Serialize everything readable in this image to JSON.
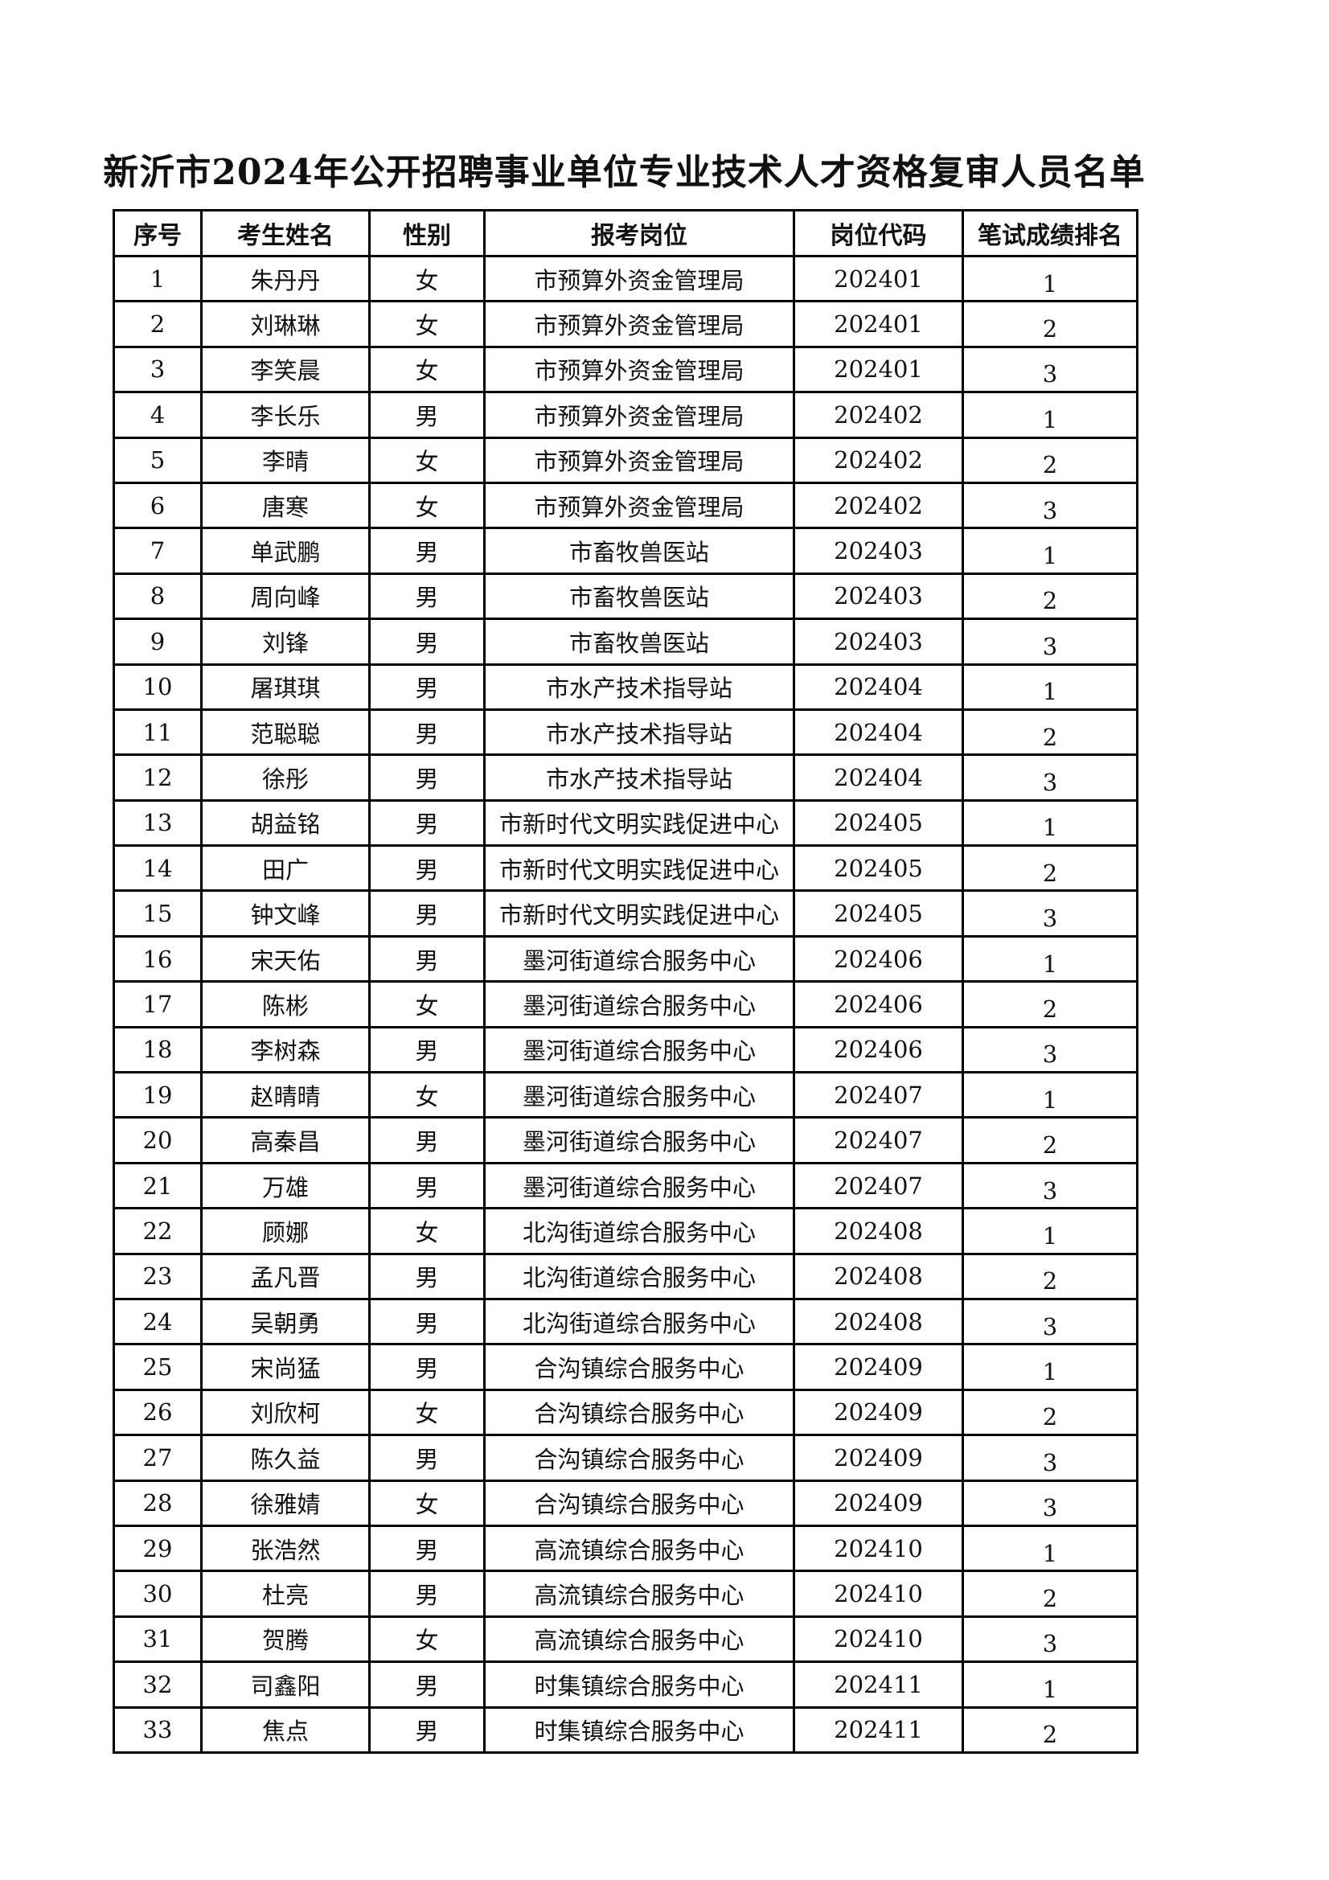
{
  "title": "新沂市2024年公开招聘事业单位专业技术人才资格复审人员名单",
  "columns": [
    "序号",
    "考生姓名",
    "性别",
    "报考岗位",
    "岗位代码",
    "笔试成绩排名"
  ],
  "rows": [
    [
      "1",
      "朱丹丹",
      "女",
      "市预算外资金管理局",
      "202401",
      "1"
    ],
    [
      "2",
      "刘琳琳",
      "女",
      "市预算外资金管理局",
      "202401",
      "2"
    ],
    [
      "3",
      "李笑晨",
      "女",
      "市预算外资金管理局",
      "202401",
      "3"
    ],
    [
      "4",
      "李长乐",
      "男",
      "市预算外资金管理局",
      "202402",
      "1"
    ],
    [
      "5",
      "李晴",
      "女",
      "市预算外资金管理局",
      "202402",
      "2"
    ],
    [
      "6",
      "唐寒",
      "女",
      "市预算外资金管理局",
      "202402",
      "3"
    ],
    [
      "7",
      "单武鹏",
      "男",
      "市畜牧兽医站",
      "202403",
      "1"
    ],
    [
      "8",
      "周向峰",
      "男",
      "市畜牧兽医站",
      "202403",
      "2"
    ],
    [
      "9",
      "刘锋",
      "男",
      "市畜牧兽医站",
      "202403",
      "3"
    ],
    [
      "10",
      "屠琪琪",
      "男",
      "市水产技术指导站",
      "202404",
      "1"
    ],
    [
      "11",
      "范聪聪",
      "男",
      "市水产技术指导站",
      "202404",
      "2"
    ],
    [
      "12",
      "徐彤",
      "男",
      "市水产技术指导站",
      "202404",
      "3"
    ],
    [
      "13",
      "胡益铭",
      "男",
      "市新时代文明实践促进中心",
      "202405",
      "1"
    ],
    [
      "14",
      "田广",
      "男",
      "市新时代文明实践促进中心",
      "202405",
      "2"
    ],
    [
      "15",
      "钟文峰",
      "男",
      "市新时代文明实践促进中心",
      "202405",
      "3"
    ],
    [
      "16",
      "宋天佑",
      "男",
      "墨河街道综合服务中心",
      "202406",
      "1"
    ],
    [
      "17",
      "陈彬",
      "女",
      "墨河街道综合服务中心",
      "202406",
      "2"
    ],
    [
      "18",
      "李树森",
      "男",
      "墨河街道综合服务中心",
      "202406",
      "3"
    ],
    [
      "19",
      "赵晴晴",
      "女",
      "墨河街道综合服务中心",
      "202407",
      "1"
    ],
    [
      "20",
      "高秦昌",
      "男",
      "墨河街道综合服务中心",
      "202407",
      "2"
    ],
    [
      "21",
      "万雄",
      "男",
      "墨河街道综合服务中心",
      "202407",
      "3"
    ],
    [
      "22",
      "顾娜",
      "女",
      "北沟街道综合服务中心",
      "202408",
      "1"
    ],
    [
      "23",
      "孟凡晋",
      "男",
      "北沟街道综合服务中心",
      "202408",
      "2"
    ],
    [
      "24",
      "吴朝勇",
      "男",
      "北沟街道综合服务中心",
      "202408",
      "3"
    ],
    [
      "25",
      "宋尚猛",
      "男",
      "合沟镇综合服务中心",
      "202409",
      "1"
    ],
    [
      "26",
      "刘欣柯",
      "女",
      "合沟镇综合服务中心",
      "202409",
      "2"
    ],
    [
      "27",
      "陈久益",
      "男",
      "合沟镇综合服务中心",
      "202409",
      "3"
    ],
    [
      "28",
      "徐雅婧",
      "女",
      "合沟镇综合服务中心",
      "202409",
      "3"
    ],
    [
      "29",
      "张浩然",
      "男",
      "高流镇综合服务中心",
      "202410",
      "1"
    ],
    [
      "30",
      "杜亮",
      "男",
      "高流镇综合服务中心",
      "202410",
      "2"
    ],
    [
      "31",
      "贺腾",
      "女",
      "高流镇综合服务中心",
      "202410",
      "3"
    ],
    [
      "32",
      "司鑫阳",
      "男",
      "时集镇综合服务中心",
      "202411",
      "1"
    ],
    [
      "33",
      "焦点",
      "男",
      "时集镇综合服务中心",
      "202411",
      "2"
    ]
  ]
}
